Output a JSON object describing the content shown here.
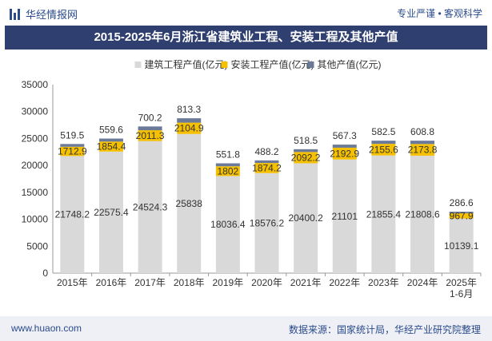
{
  "header": {
    "brand": "华经情报网",
    "tagline": "专业严谨 • 客观科学"
  },
  "chart_title": "2015-2025年6月浙江省建筑业工程、安装工程及其他产值",
  "footer": {
    "website": "www.huaon.com",
    "source": "数据来源：国家统计局，华经产业研究院整理"
  },
  "colors": {
    "construction": "#d9d9d9",
    "installation": "#f5c000",
    "other": "#6b7a99",
    "title_bg": "#2f3f6f"
  },
  "chart_data": {
    "type": "bar",
    "stacked": true,
    "categories": [
      "2015年",
      "2016年",
      "2017年",
      "2018年",
      "2019年",
      "2020年",
      "2021年",
      "2022年",
      "2023年",
      "2024年",
      "2025年\n1-6月"
    ],
    "series": [
      {
        "name": "建筑工程产值(亿元)",
        "values": [
          21748.2,
          22575.4,
          24524.3,
          25838,
          18036.4,
          18576.2,
          20400.2,
          21101,
          21855.4,
          21808.6,
          10139.1
        ]
      },
      {
        "name": "安装工程产值(亿元)",
        "values": [
          1712.9,
          1854.4,
          2011.3,
          2104.9,
          1802,
          1874.2,
          2092.2,
          2192.9,
          2155.6,
          2173.8,
          967.9
        ]
      },
      {
        "name": "其他产值(亿元)",
        "values": [
          519.5,
          559.6,
          700.2,
          813.3,
          551.8,
          488.2,
          518.5,
          567.3,
          582.5,
          608.8,
          286.6
        ]
      }
    ],
    "y_ticks": [
      0,
      5000,
      10000,
      15000,
      20000,
      25000,
      30000,
      35000
    ],
    "ylim": [
      0,
      35000
    ],
    "legend_position": "top-center",
    "grid": false
  }
}
